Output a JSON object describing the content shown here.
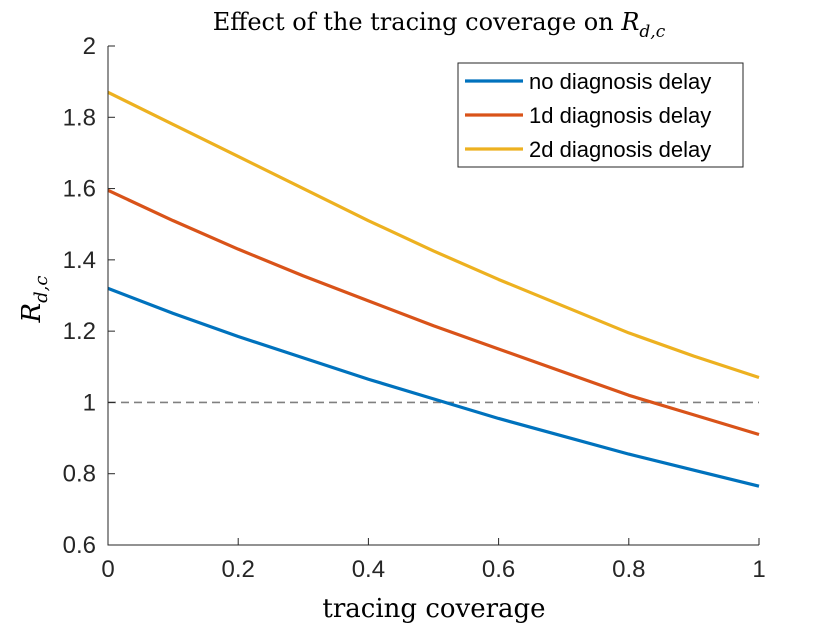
{
  "chart_data": {
    "type": "line",
    "title": {
      "prefix": "Effect of the tracing coverage on ",
      "symbol": "R",
      "subscript": "d,c"
    },
    "xlabel": "tracing coverage",
    "ylabel": {
      "symbol": "R",
      "subscript": "d,c"
    },
    "xlim": [
      0,
      1
    ],
    "ylim": [
      0.6,
      2
    ],
    "xticks": [
      0,
      0.2,
      0.4,
      0.6,
      0.8,
      1
    ],
    "xtick_labels": [
      "0",
      "0.2",
      "0.4",
      "0.6",
      "0.8",
      "1"
    ],
    "yticks": [
      0.6,
      0.8,
      1,
      1.2,
      1.4,
      1.6,
      1.8,
      2
    ],
    "ytick_labels": [
      "0.6",
      "0.8",
      "1",
      "1.2",
      "1.4",
      "1.6",
      "1.8",
      "2"
    ],
    "grid": false,
    "legend_position": "top-right",
    "reference_line": {
      "y": 1,
      "style": "dashed",
      "color": "#808080"
    },
    "x": [
      0,
      0.1,
      0.2,
      0.3,
      0.4,
      0.5,
      0.6,
      0.7,
      0.8,
      0.9,
      1
    ],
    "series": [
      {
        "name": "no diagnosis delay",
        "color": "#0072BD",
        "values": [
          1.32,
          1.25,
          1.185,
          1.125,
          1.065,
          1.01,
          0.955,
          0.905,
          0.855,
          0.81,
          0.765
        ]
      },
      {
        "name": "1d diagnosis delay",
        "color": "#D95319",
        "values": [
          1.595,
          1.51,
          1.43,
          1.355,
          1.285,
          1.215,
          1.15,
          1.085,
          1.02,
          0.965,
          0.91
        ]
      },
      {
        "name": "2d diagnosis delay",
        "color": "#EDB120",
        "values": [
          1.87,
          1.78,
          1.69,
          1.6,
          1.51,
          1.425,
          1.345,
          1.27,
          1.195,
          1.13,
          1.07
        ]
      }
    ]
  }
}
